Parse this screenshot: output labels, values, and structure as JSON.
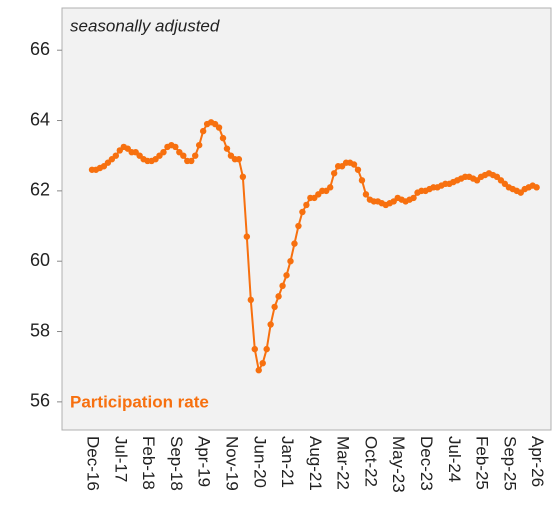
{
  "chart_data": {
    "type": "line",
    "subtitle": "seasonally adjusted",
    "categories": [
      "Dec-16",
      null,
      null,
      null,
      null,
      null,
      null,
      "Jul-17",
      null,
      null,
      null,
      null,
      null,
      null,
      "Feb-18",
      null,
      null,
      null,
      null,
      null,
      null,
      "Sep-18",
      null,
      null,
      null,
      null,
      null,
      null,
      "Apr-19",
      null,
      null,
      null,
      null,
      null,
      null,
      "Nov-19",
      null,
      null,
      null,
      null,
      null,
      null,
      "Jun-20",
      null,
      null,
      null,
      null,
      null,
      null,
      "Jan-21",
      null,
      null,
      null,
      null,
      null,
      null,
      "Aug-21",
      null,
      null,
      null,
      null,
      null,
      null,
      "Mar-22",
      null,
      null,
      null,
      null,
      null,
      null,
      "Oct-22",
      null,
      null,
      null,
      null,
      null,
      null,
      "May-23",
      null,
      null,
      null,
      null,
      null,
      null,
      "Dec-23",
      null,
      null,
      null,
      null,
      null,
      null,
      "Jul-24",
      null,
      null,
      null,
      null,
      null,
      null,
      "Feb-25",
      null,
      null,
      null,
      null,
      null,
      null,
      "Sep-25",
      null,
      null,
      null,
      null,
      null,
      null,
      "Apr-26"
    ],
    "series": [
      {
        "name": "Participation rate",
        "color": "#f7700f",
        "values": [
          62.6,
          62.6,
          62.65,
          62.7,
          62.8,
          62.9,
          63.0,
          63.15,
          63.25,
          63.2,
          63.1,
          63.1,
          63.0,
          62.9,
          62.85,
          62.85,
          62.9,
          63.0,
          63.1,
          63.25,
          63.3,
          63.25,
          63.1,
          63.0,
          62.85,
          62.85,
          63.0,
          63.3,
          63.7,
          63.9,
          63.95,
          63.9,
          63.8,
          63.5,
          63.2,
          63.0,
          62.9,
          62.9,
          62.4,
          60.7,
          58.9,
          57.5,
          56.9,
          57.1,
          57.5,
          58.2,
          58.7,
          59.0,
          59.3,
          59.6,
          60.0,
          60.5,
          61.0,
          61.4,
          61.6,
          61.8,
          61.8,
          61.9,
          62.0,
          62.0,
          62.1,
          62.5,
          62.7,
          62.7,
          62.8,
          62.8,
          62.75,
          62.6,
          62.3,
          61.9,
          61.75,
          61.7,
          61.7,
          61.65,
          61.6,
          61.65,
          61.7,
          61.8,
          61.75,
          61.7,
          61.75,
          61.8,
          61.95,
          62.0,
          62.0,
          62.05,
          62.1,
          62.1,
          62.15,
          62.2,
          62.2,
          62.25,
          62.3,
          62.35,
          62.4,
          62.4,
          62.35,
          62.3,
          62.4,
          62.45,
          62.5,
          62.45,
          62.4,
          62.3,
          62.2,
          62.1,
          62.05,
          62.0,
          61.95,
          62.05,
          62.1,
          62.15,
          62.1
        ]
      }
    ],
    "ylim": [
      55.2,
      67.2
    ],
    "yticks": [
      56,
      58,
      60,
      62,
      64,
      66
    ],
    "grid": false
  }
}
